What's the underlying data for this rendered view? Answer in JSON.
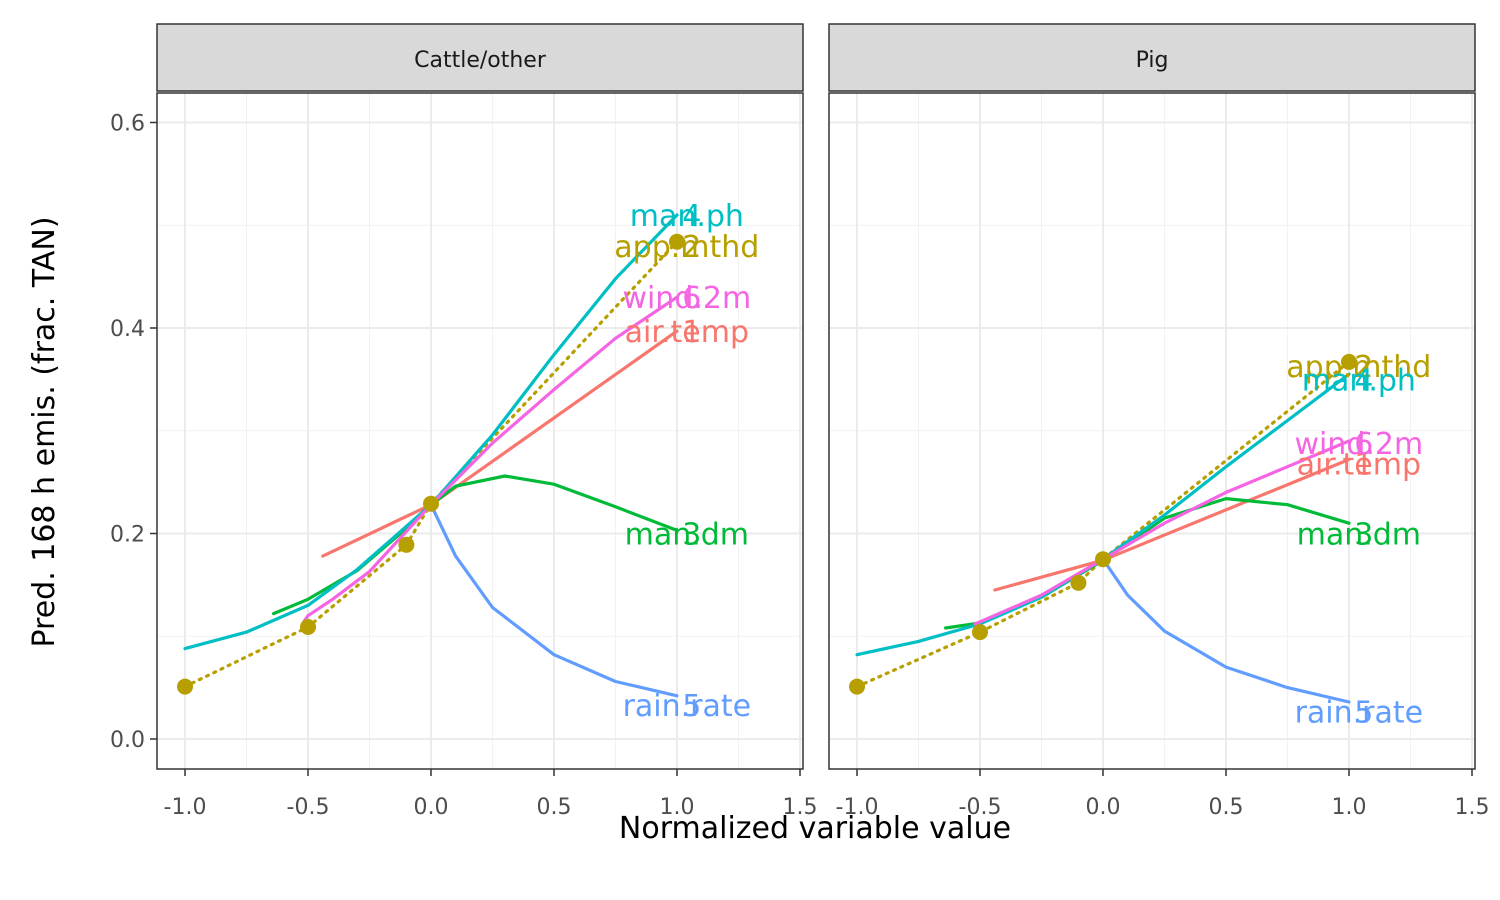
{
  "chart_data": {
    "type": "line",
    "xlabel": "Normalized variable value",
    "ylabel": "Pred. 168 h emis. (frac. TAN)",
    "xlim": [
      -1.1,
      1.5
    ],
    "ylim": [
      -0.03,
      0.63
    ],
    "x_ticks": [
      -1.0,
      -0.5,
      0.0,
      0.5,
      1.0,
      1.5
    ],
    "x_tick_labels": [
      "-1.0",
      "-0.5",
      "0.0",
      "0.5",
      "1.0",
      "1.5"
    ],
    "y_ticks": [
      0.0,
      0.2,
      0.4,
      0.6
    ],
    "y_tick_labels": [
      "0.0",
      "0.2",
      "0.4",
      "0.6"
    ],
    "grid": true,
    "panels": [
      {
        "strip": "Cattle/other",
        "series": [
          {
            "name": "air.temp",
            "number": "1",
            "color": "#F8766D",
            "dash": "solid",
            "x": [
              -0.44,
              0.0,
              1.0
            ],
            "y": [
              0.178,
              0.228,
              0.397
            ]
          },
          {
            "name": "app.mthd",
            "number": "2",
            "color": "#B79F00",
            "dash": "dotted",
            "points": true,
            "x": [
              -1.0,
              -0.5,
              -0.1,
              0.0,
              1.0
            ],
            "y": [
              0.051,
              0.109,
              0.189,
              0.229,
              0.484
            ]
          },
          {
            "name": "man.dm",
            "number": "3",
            "color": "#00BA38",
            "dash": "solid",
            "x": [
              -0.64,
              -0.5,
              -0.3,
              -0.1,
              0.0,
              0.1,
              0.3,
              0.5,
              0.75,
              1.0
            ],
            "y": [
              0.122,
              0.136,
              0.164,
              0.205,
              0.228,
              0.246,
              0.256,
              0.248,
              0.226,
              0.203
            ]
          },
          {
            "name": "man.ph",
            "number": "4",
            "color": "#00BFC4",
            "dash": "solid",
            "x": [
              -1.0,
              -0.75,
              -0.5,
              -0.3,
              0.0,
              0.25,
              0.5,
              0.75,
              1.0
            ],
            "y": [
              0.088,
              0.104,
              0.13,
              0.165,
              0.228,
              0.296,
              0.374,
              0.448,
              0.51
            ]
          },
          {
            "name": "rain.rate",
            "number": "5",
            "color": "#619CFF",
            "dash": "solid",
            "x": [
              0.0,
              0.1,
              0.25,
              0.5,
              0.75,
              1.0
            ],
            "y": [
              0.228,
              0.178,
              0.128,
              0.082,
              0.056,
              0.042
            ]
          },
          {
            "name": "wind.2m",
            "number": "6",
            "color": "#F564E3",
            "dash": "solid",
            "x": [
              -0.52,
              -0.5,
              -0.4,
              -0.25,
              0.0,
              0.25,
              0.5,
              0.75,
              1.0
            ],
            "y": [
              0.113,
              0.12,
              0.136,
              0.163,
              0.228,
              0.288,
              0.34,
              0.39,
              0.43
            ]
          }
        ]
      },
      {
        "strip": "Pig",
        "series": [
          {
            "name": "air.temp",
            "number": "1",
            "color": "#F8766D",
            "dash": "solid",
            "x": [
              -0.44,
              0.0,
              1.0
            ],
            "y": [
              0.145,
              0.174,
              0.272
            ]
          },
          {
            "name": "app.mthd",
            "number": "2",
            "color": "#B79F00",
            "dash": "dotted",
            "points": true,
            "x": [
              -1.0,
              -0.5,
              -0.1,
              0.0,
              1.0
            ],
            "y": [
              0.051,
              0.104,
              0.152,
              0.175,
              0.367
            ]
          },
          {
            "name": "man.dm",
            "number": "3",
            "color": "#00BA38",
            "dash": "solid",
            "x": [
              -0.64,
              -0.5,
              -0.25,
              0.0,
              0.25,
              0.5,
              0.75,
              1.0
            ],
            "y": [
              0.108,
              0.113,
              0.138,
              0.174,
              0.215,
              0.234,
              0.228,
              0.21
            ]
          },
          {
            "name": "man.ph",
            "number": "4",
            "color": "#00BFC4",
            "dash": "solid",
            "x": [
              -1.0,
              -0.75,
              -0.5,
              -0.25,
              0.0,
              0.25,
              0.5,
              0.75,
              1.0
            ],
            "y": [
              0.082,
              0.095,
              0.112,
              0.138,
              0.175,
              0.218,
              0.265,
              0.31,
              0.355
            ]
          },
          {
            "name": "rain.rate",
            "number": "5",
            "color": "#619CFF",
            "dash": "solid",
            "x": [
              0.0,
              0.1,
              0.25,
              0.5,
              0.75,
              1.0
            ],
            "y": [
              0.175,
              0.14,
              0.105,
              0.07,
              0.05,
              0.036
            ]
          },
          {
            "name": "wind.2m",
            "number": "6",
            "color": "#F564E3",
            "dash": "solid",
            "x": [
              -0.52,
              -0.5,
              -0.25,
              0.0,
              0.25,
              0.5,
              0.75,
              1.0
            ],
            "y": [
              0.112,
              0.114,
              0.14,
              0.175,
              0.21,
              0.24,
              0.265,
              0.29
            ]
          }
        ]
      }
    ]
  }
}
